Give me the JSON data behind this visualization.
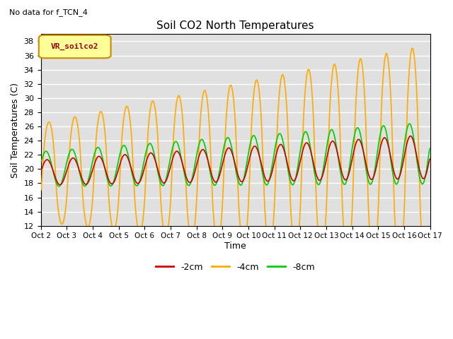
{
  "title": "Soil CO2 North Temperatures",
  "subtitle": "No data for f_TCN_4",
  "xlabel": "Time",
  "ylabel": "Soil Temperatures (C)",
  "ylim": [
    12,
    39
  ],
  "yticks": [
    12,
    14,
    16,
    18,
    20,
    22,
    24,
    26,
    28,
    30,
    32,
    34,
    36,
    38
  ],
  "x_labels": [
    "Oct 2",
    "Oct 3",
    "Oct 4",
    "Oct 5",
    "Oct 6",
    "Oct 7",
    "Oct 8",
    "Oct 9",
    "Oct 10",
    "Oct 11",
    "Oct 12",
    "Oct 13",
    "Oct 14",
    "Oct 15",
    "Oct 16",
    "Oct 17"
  ],
  "color_2cm": "#cc0000",
  "color_4cm": "#ffaa00",
  "color_8cm": "#00cc00",
  "bg_color": "#e0e0e0",
  "legend_box_color": "#ffff99",
  "legend_box_border": "#cc8800",
  "legend_box_text": "#990000",
  "legend_box_label": "VR_soilco2",
  "n_points": 2000
}
